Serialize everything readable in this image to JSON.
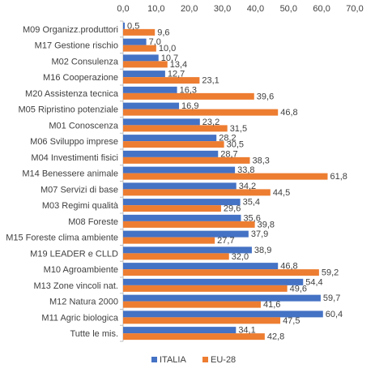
{
  "chart_data": {
    "type": "bar",
    "orientation": "horizontal",
    "categories": [
      "M09 Organizz.produttori",
      "M17 Gestione rischio",
      "M02 Consulenza",
      "M16 Cooperazione",
      "M20 Assistenza tecnica",
      "M05 Ripristino potenziale",
      "M01 Conoscenza",
      "M06 Sviluppo imprese",
      "M04 Investimenti fisici",
      "M14 Benessere animale",
      "M07 Servizi di base",
      "M03 Regimi qualità",
      "M08 Foreste",
      "M15 Foreste clima ambiente",
      "M19 LEADER e CLLD",
      "M10 Agroambiente",
      "M13 Zone vincoli nat.",
      "M12 Natura 2000",
      "M11 Agric biologica",
      "Tutte le mis."
    ],
    "series": [
      {
        "name": "ITALIA",
        "color": "#4472C4",
        "values": [
          0.5,
          7.0,
          10.7,
          12.7,
          16.3,
          16.9,
          23.2,
          28.2,
          28.7,
          33.8,
          34.2,
          35.4,
          35.6,
          37.9,
          38.9,
          46.8,
          54.4,
          59.7,
          60.4,
          34.1
        ],
        "labels": [
          "0,5",
          "7,0",
          "10,7",
          "12,7",
          "16,3",
          "16,9",
          "23,2",
          "28,2",
          "28,7",
          "33,8",
          "34,2",
          "35,4",
          "35,6",
          "37,9",
          "38,9",
          "46,8",
          "54,4",
          "59,7",
          "60,4",
          "34,1"
        ]
      },
      {
        "name": "EU-28",
        "color": "#ED7D31",
        "values": [
          9.6,
          10.0,
          13.4,
          23.1,
          39.6,
          46.8,
          31.5,
          30.5,
          38.3,
          61.8,
          44.5,
          29.6,
          39.8,
          27.7,
          32.0,
          59.2,
          49.6,
          41.6,
          47.5,
          42.8
        ],
        "labels": [
          "9,6",
          "10,0",
          "13,4",
          "23,1",
          "39,6",
          "46,8",
          "31,5",
          "30,5",
          "38,3",
          "61,8",
          "44,5",
          "29,6",
          "39,8",
          "27,7",
          "32,0",
          "59,2",
          "49,6",
          "41,6",
          "47,5",
          "42,8"
        ]
      }
    ],
    "xlim": [
      0,
      70
    ],
    "x_ticks": [
      0,
      10,
      20,
      30,
      40,
      50,
      60,
      70
    ],
    "x_tick_labels": [
      "0,0",
      "10,0",
      "20,0",
      "30,0",
      "40,0",
      "50,0",
      "60,0",
      "70,0"
    ],
    "x_axis_position": "top",
    "grid": false,
    "legend": {
      "position": "bottom",
      "entries": [
        "ITALIA",
        "EU-28"
      ]
    }
  }
}
